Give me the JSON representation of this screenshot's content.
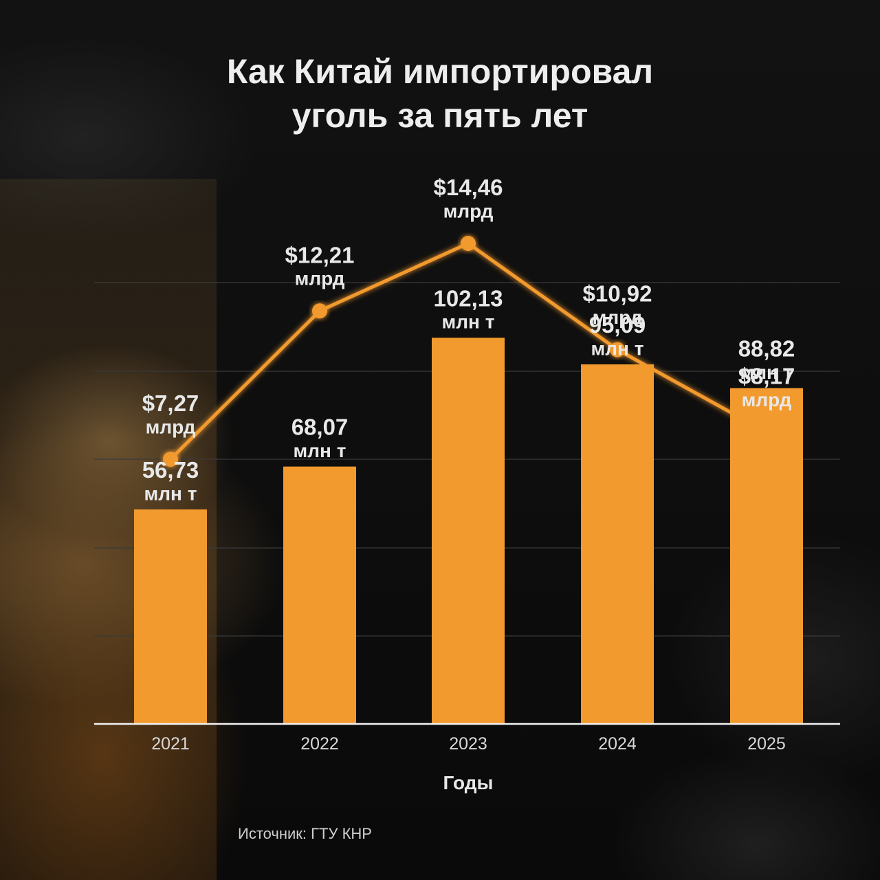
{
  "title_lines": [
    "Как Китай импортировал",
    "уголь за пять лет"
  ],
  "source": "Источник: ГТУ КНР",
  "colors": {
    "bar": "#f29a2e",
    "line": "#f29a2e",
    "text": "#e8e8e8",
    "grid": "#3a3a3a"
  },
  "chart_data": {
    "type": "bar+line",
    "title": "Как Китай импортировал уголь за пять лет",
    "xlabel": "Годы",
    "categories": [
      "2021",
      "2022",
      "2023",
      "2024",
      "2025"
    ],
    "series": [
      {
        "type": "bar",
        "values": [
          56.73,
          68.07,
          102.13,
          95.09,
          88.82
        ],
        "labels": [
          [
            "56,73",
            "млн т"
          ],
          [
            "68,07",
            "млн т"
          ],
          [
            "102,13",
            "млн т"
          ],
          [
            "95,09",
            "млн т"
          ],
          [
            "88,82",
            "млн т"
          ]
        ]
      },
      {
        "type": "line",
        "values": [
          7.27,
          12.21,
          14.46,
          10.92,
          8.17
        ],
        "labels": [
          [
            "$7,27",
            "млрд"
          ],
          [
            "$12,21",
            "млрд"
          ],
          [
            "$14,46",
            "млрд"
          ],
          [
            "$10,92",
            "млрд"
          ],
          [
            "$8,17",
            "млрд"
          ]
        ]
      }
    ],
    "ylim": [
      0,
      110
    ],
    "grid": true
  }
}
